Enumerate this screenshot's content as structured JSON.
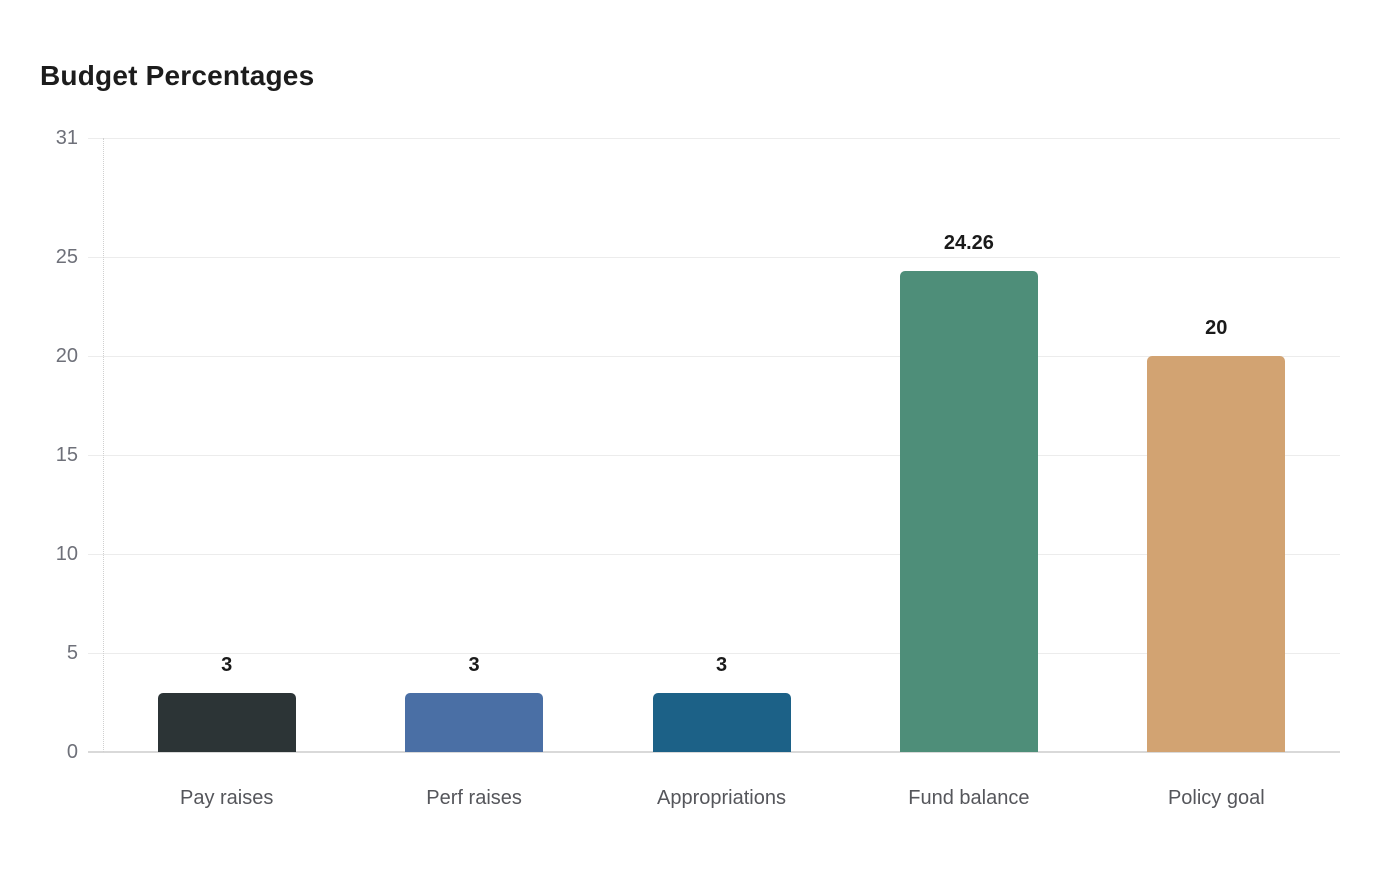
{
  "chart_data": {
    "type": "bar",
    "title": "Budget Percentages",
    "categories": [
      "Pay raises",
      "Perf raises",
      "Appropriations",
      "Fund balance",
      "Policy goal"
    ],
    "values": [
      3,
      3,
      3,
      24.26,
      20
    ],
    "value_labels": [
      "3",
      "3",
      "3",
      "24.26",
      "20"
    ],
    "bar_colors": [
      "#2c3436",
      "#4a6fa5",
      "#1c6187",
      "#4e8e79",
      "#d2a372"
    ],
    "xlabel": "",
    "ylabel": "",
    "ylim": [
      0,
      31
    ],
    "yticks": [
      0,
      5,
      10,
      15,
      20,
      25,
      31
    ],
    "grid": true,
    "legend": false,
    "styles": {
      "title_color": "#1c1c1c",
      "gridline_color": "#ececec",
      "axis_line_color": "#d9d9d9",
      "y_tick_label_color": "#6e7079",
      "x_label_color": "#55565b",
      "value_label_color": "#1a1a1a",
      "background": "#ffffff"
    }
  }
}
